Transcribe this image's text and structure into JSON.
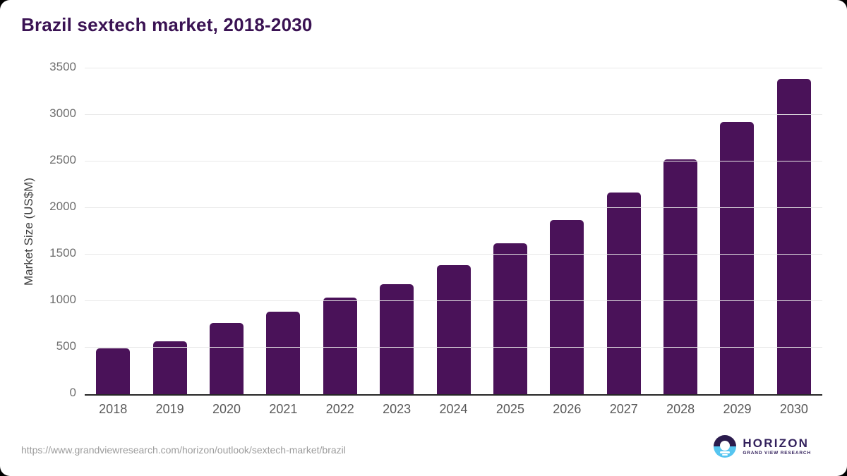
{
  "title": "Brazil sextech market, 2018-2030",
  "chart_data": {
    "type": "bar",
    "categories": [
      "2018",
      "2019",
      "2020",
      "2021",
      "2022",
      "2023",
      "2024",
      "2025",
      "2026",
      "2027",
      "2028",
      "2029",
      "2030"
    ],
    "values": [
      490,
      570,
      765,
      890,
      1035,
      1185,
      1390,
      1620,
      1870,
      2165,
      2520,
      2925,
      3390
    ],
    "title": "Brazil sextech market, 2018-2030",
    "xlabel": "",
    "ylabel": "Market Size (US$M)",
    "ylim": [
      0,
      3500
    ],
    "ytick_step": 500,
    "grid": true,
    "legend_position": "none",
    "bar_color": "#4a1259"
  },
  "colors": {
    "bar": "#4a1259",
    "title": "#3a1253",
    "gridline": "#e8e8e8",
    "axis_line": "#262626",
    "logo_purple": "#2b1b4d",
    "logo_blue": "#56c5f0"
  },
  "footer": {
    "source_url": "https://www.grandviewresearch.com/horizon/outlook/sextech-market/brazil",
    "logo_name": "HORIZON",
    "logo_subtitle": "GRAND VIEW RESEARCH"
  }
}
